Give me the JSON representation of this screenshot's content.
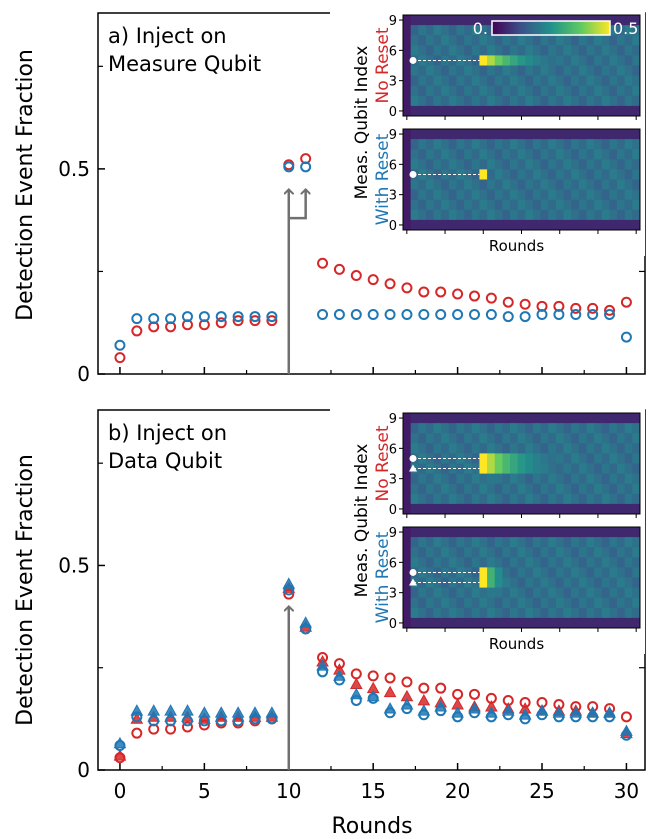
{
  "figure": {
    "xlabel": "Rounds",
    "ylabel": "Detection Event Fraction",
    "xticks": [
      0,
      5,
      10,
      15,
      20,
      25,
      30
    ],
    "xlim": [
      -1.3,
      31.1
    ],
    "colors": {
      "no_reset": "#d62728",
      "with_reset": "#1f77b4",
      "arrow": "#707070"
    }
  },
  "chart_data": [
    {
      "type": "scatter",
      "panel_label": "a) Inject on Measure Qubit",
      "panel_label_lines": [
        "a) Inject on",
        "Measure Qubit"
      ],
      "ylim": [
        0,
        0.88
      ],
      "yticks": [
        0,
        0.5
      ],
      "ytick_labels": [
        "0",
        "0.5"
      ],
      "injection_round": 10,
      "series": [
        {
          "key": "no_reset",
          "marker": "circle",
          "x": [
            0,
            1,
            2,
            3,
            4,
            5,
            6,
            7,
            8,
            9,
            10,
            11,
            12,
            13,
            14,
            15,
            16,
            17,
            18,
            19,
            20,
            21,
            22,
            23,
            24,
            25,
            26,
            27,
            28,
            29,
            30
          ],
          "y": [
            0.04,
            0.105,
            0.115,
            0.115,
            0.12,
            0.12,
            0.125,
            0.13,
            0.13,
            0.13,
            0.51,
            0.525,
            0.27,
            0.255,
            0.24,
            0.23,
            0.22,
            0.21,
            0.2,
            0.2,
            0.195,
            0.19,
            0.185,
            0.175,
            0.17,
            0.165,
            0.165,
            0.16,
            0.16,
            0.155,
            0.175
          ]
        },
        {
          "key": "with_reset",
          "marker": "circle",
          "x": [
            0,
            1,
            2,
            3,
            4,
            5,
            6,
            7,
            8,
            9,
            10,
            11,
            12,
            13,
            14,
            15,
            16,
            17,
            18,
            19,
            20,
            21,
            22,
            23,
            24,
            25,
            26,
            27,
            28,
            29,
            30
          ],
          "y": [
            0.07,
            0.135,
            0.135,
            0.135,
            0.14,
            0.14,
            0.14,
            0.14,
            0.14,
            0.14,
            0.505,
            0.505,
            0.145,
            0.145,
            0.145,
            0.145,
            0.145,
            0.145,
            0.145,
            0.145,
            0.145,
            0.145,
            0.145,
            0.14,
            0.14,
            0.145,
            0.145,
            0.145,
            0.145,
            0.145,
            0.09
          ]
        }
      ],
      "inset": {
        "ylabel": "Meas. Qubit Index",
        "xlabel": "Rounds",
        "colorbar": {
          "min_label": "0.",
          "max_label": "0.5"
        },
        "yticks": [
          0,
          3,
          6,
          9
        ],
        "subplots": [
          {
            "label": "No Reset",
            "key": "no_reset",
            "inject_markers": [
              {
                "shape": "circle",
                "row": 5
              }
            ],
            "source_rows": [
              5
            ]
          },
          {
            "label": "With Reset",
            "key": "with_reset",
            "inject_markers": [
              {
                "shape": "circle",
                "row": 5
              }
            ],
            "source_rows": [
              5
            ]
          }
        ]
      }
    },
    {
      "type": "scatter",
      "panel_label": "b) Inject on Data Qubit",
      "panel_label_lines": [
        "b) Inject on",
        "Data Qubit"
      ],
      "ylim": [
        0,
        0.88
      ],
      "yticks": [
        0,
        0.5
      ],
      "ytick_labels": [
        "0",
        "0.5"
      ],
      "injection_round": 10,
      "series": [
        {
          "key": "no_reset_circle",
          "marker": "circle",
          "x": [
            0,
            1,
            2,
            3,
            4,
            5,
            6,
            7,
            8,
            9,
            10,
            11,
            12,
            13,
            14,
            15,
            16,
            17,
            18,
            19,
            20,
            21,
            22,
            23,
            24,
            25,
            26,
            27,
            28,
            29,
            30
          ],
          "y": [
            0.03,
            0.09,
            0.1,
            0.1,
            0.105,
            0.11,
            0.115,
            0.115,
            0.12,
            0.125,
            0.43,
            0.345,
            0.275,
            0.26,
            0.235,
            0.23,
            0.225,
            0.215,
            0.2,
            0.2,
            0.185,
            0.185,
            0.175,
            0.17,
            0.165,
            0.165,
            0.16,
            0.155,
            0.155,
            0.15,
            0.13
          ]
        },
        {
          "key": "no_reset_triangle",
          "marker": "triangle",
          "x": [
            0,
            1,
            2,
            3,
            4,
            5,
            6,
            7,
            8,
            9,
            10,
            11,
            12,
            13,
            14,
            15,
            16,
            17,
            18,
            19,
            20,
            21,
            22,
            23,
            24,
            25,
            26,
            27,
            28,
            29,
            30
          ],
          "y": [
            0.035,
            0.125,
            0.13,
            0.13,
            0.13,
            0.125,
            0.13,
            0.13,
            0.13,
            0.13,
            0.445,
            0.35,
            0.265,
            0.245,
            0.21,
            0.2,
            0.19,
            0.18,
            0.17,
            0.165,
            0.16,
            0.155,
            0.155,
            0.15,
            0.15,
            0.145,
            0.145,
            0.145,
            0.14,
            0.14,
            0.09
          ]
        },
        {
          "key": "with_reset_circle",
          "marker": "circle",
          "x": [
            0,
            1,
            2,
            3,
            4,
            5,
            6,
            7,
            8,
            9,
            10,
            11,
            12,
            13,
            14,
            15,
            16,
            17,
            18,
            19,
            20,
            21,
            22,
            23,
            24,
            25,
            26,
            27,
            28,
            29,
            30
          ],
          "y": [
            0.06,
            0.13,
            0.12,
            0.12,
            0.12,
            0.12,
            0.12,
            0.12,
            0.125,
            0.125,
            0.44,
            0.345,
            0.24,
            0.22,
            0.17,
            0.175,
            0.14,
            0.15,
            0.135,
            0.145,
            0.13,
            0.14,
            0.13,
            0.135,
            0.125,
            0.135,
            0.13,
            0.13,
            0.13,
            0.13,
            0.085
          ]
        },
        {
          "key": "with_reset_triangle",
          "marker": "triangle",
          "x": [
            0,
            1,
            2,
            3,
            4,
            5,
            6,
            7,
            8,
            9,
            10,
            11,
            12,
            13,
            14,
            15,
            16,
            17,
            18,
            19,
            20,
            21,
            22,
            23,
            24,
            25,
            26,
            27,
            28,
            29,
            30
          ],
          "y": [
            0.065,
            0.145,
            0.145,
            0.145,
            0.145,
            0.14,
            0.14,
            0.14,
            0.14,
            0.14,
            0.455,
            0.36,
            0.255,
            0.23,
            0.185,
            0.18,
            0.15,
            0.16,
            0.145,
            0.155,
            0.14,
            0.15,
            0.14,
            0.145,
            0.135,
            0.145,
            0.14,
            0.14,
            0.14,
            0.14,
            0.095
          ]
        }
      ],
      "inset": {
        "ylabel": "Meas. Qubit Index",
        "xlabel": "Rounds",
        "yticks": [
          0,
          3,
          6,
          9
        ],
        "subplots": [
          {
            "label": "No Reset",
            "key": "no_reset",
            "inject_markers": [
              {
                "shape": "circle",
                "row": 5
              },
              {
                "shape": "triangle",
                "row": 4
              }
            ],
            "source_rows": [
              4,
              5
            ]
          },
          {
            "label": "With Reset",
            "key": "with_reset",
            "inject_markers": [
              {
                "shape": "circle",
                "row": 5
              },
              {
                "shape": "triangle",
                "row": 4
              }
            ],
            "source_rows": [
              4,
              5
            ]
          }
        ]
      }
    }
  ]
}
